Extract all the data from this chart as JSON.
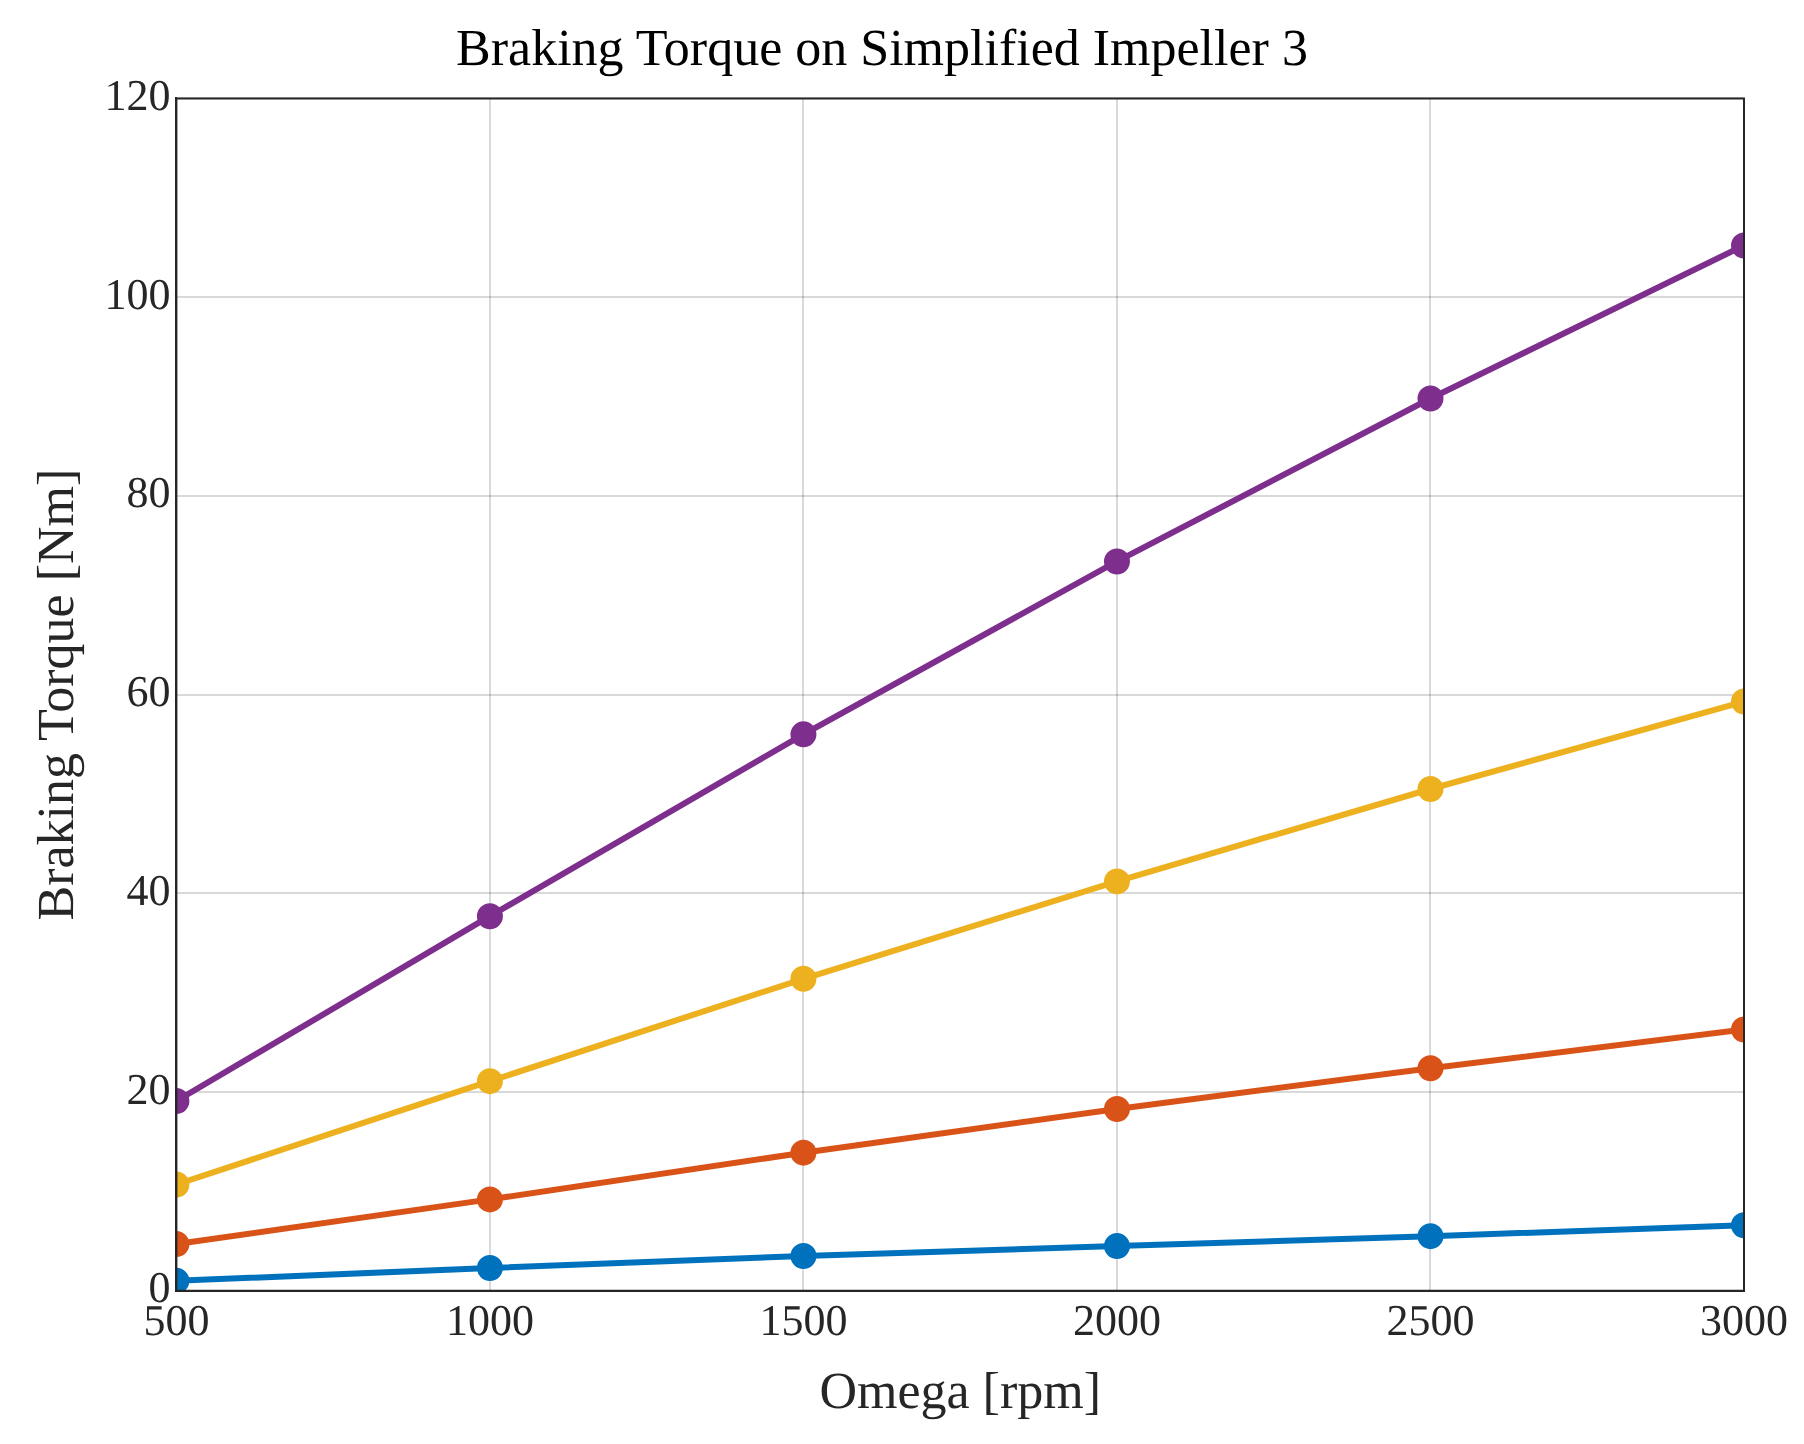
{
  "chart_data": {
    "type": "line",
    "title": "Braking Torque on Simplified Impeller 3",
    "xlabel": "Omega [rpm]",
    "ylabel": "Braking Torque [Nm]",
    "x": [
      500,
      1000,
      1500,
      2000,
      2500,
      3000
    ],
    "series": [
      {
        "color": "#0072bd",
        "values": [
          1.0,
          2.3,
          3.5,
          4.5,
          5.5,
          6.6
        ]
      },
      {
        "color": "#d95319",
        "values": [
          4.7,
          9.2,
          13.9,
          18.3,
          22.4,
          26.3
        ]
      },
      {
        "color": "#edb120",
        "values": [
          10.7,
          21.1,
          31.4,
          41.2,
          50.5,
          59.3
        ]
      },
      {
        "color": "#7e2f8e",
        "values": [
          19.1,
          37.7,
          56.0,
          73.4,
          89.8,
          105.2
        ]
      }
    ],
    "xlim": [
      500,
      3000
    ],
    "xticks": [
      500,
      1000,
      1500,
      2000,
      2500,
      3000
    ],
    "ylim": [
      0,
      120
    ],
    "yticks": [
      0,
      20,
      40,
      60,
      80,
      100,
      120
    ],
    "grid": true,
    "marker": "circle",
    "line_style": "solid",
    "legend": false
  }
}
